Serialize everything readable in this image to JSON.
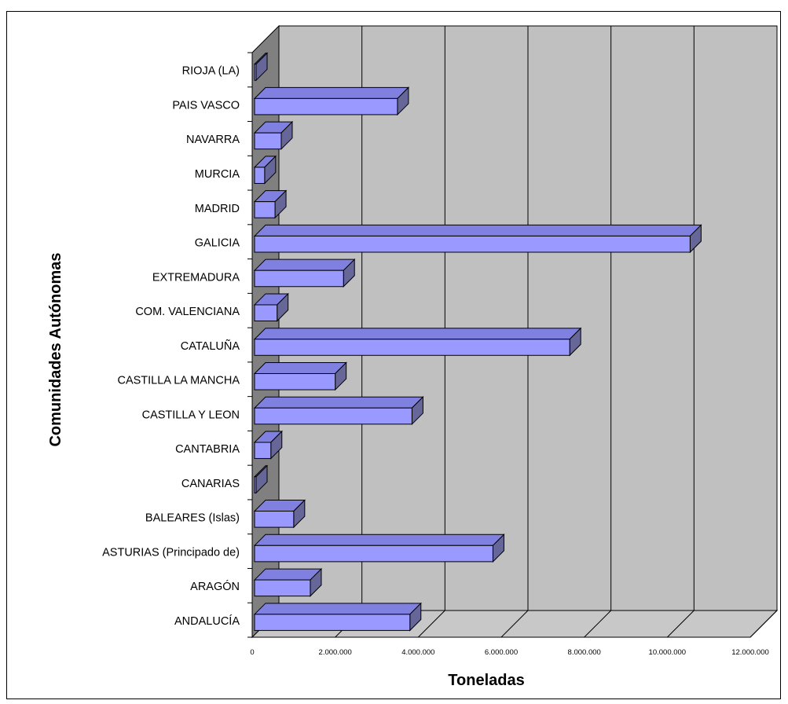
{
  "chart_data": {
    "type": "bar",
    "orientation": "horizontal",
    "three_d": true,
    "categories": [
      "ANDALUCÍA",
      "ARAGÓN",
      "ASTURIAS (Principado de)",
      "BALEARES (Islas)",
      "CANARIAS",
      "CANTABRIA",
      "CASTILLA Y LEON",
      "CASTILLA LA MANCHA",
      "CATALUÑA",
      "COM. VALENCIANA",
      "EXTREMADURA",
      "GALICIA",
      "MADRID",
      "MURCIA",
      "NAVARRA",
      "PAIS VASCO",
      "RIOJA (LA)"
    ],
    "values": [
      3800000,
      1400000,
      5800000,
      1000000,
      0,
      450000,
      3850000,
      2000000,
      7650000,
      600000,
      2200000,
      10550000,
      550000,
      300000,
      700000,
      3500000,
      0
    ],
    "xlabel": "Toneladas",
    "ylabel": "Comunidades Autónomas",
    "xlim": [
      0,
      12000000
    ],
    "x_ticks": [
      0,
      2000000,
      4000000,
      6000000,
      8000000,
      10000000,
      12000000
    ],
    "x_tick_labels": [
      "0",
      "2.000.000",
      "4.000.000",
      "6.000.000",
      "8.000.000",
      "10.000.000",
      "12.000.000"
    ],
    "grid": true,
    "legend": "none",
    "colors": {
      "bar_front": "#9999ff",
      "bar_top": "#8080e0",
      "bar_side": "#666699",
      "plot_back": "#c0c0c0",
      "plot_wall": "#808080",
      "plot_floor": "#c8c8c8"
    }
  }
}
